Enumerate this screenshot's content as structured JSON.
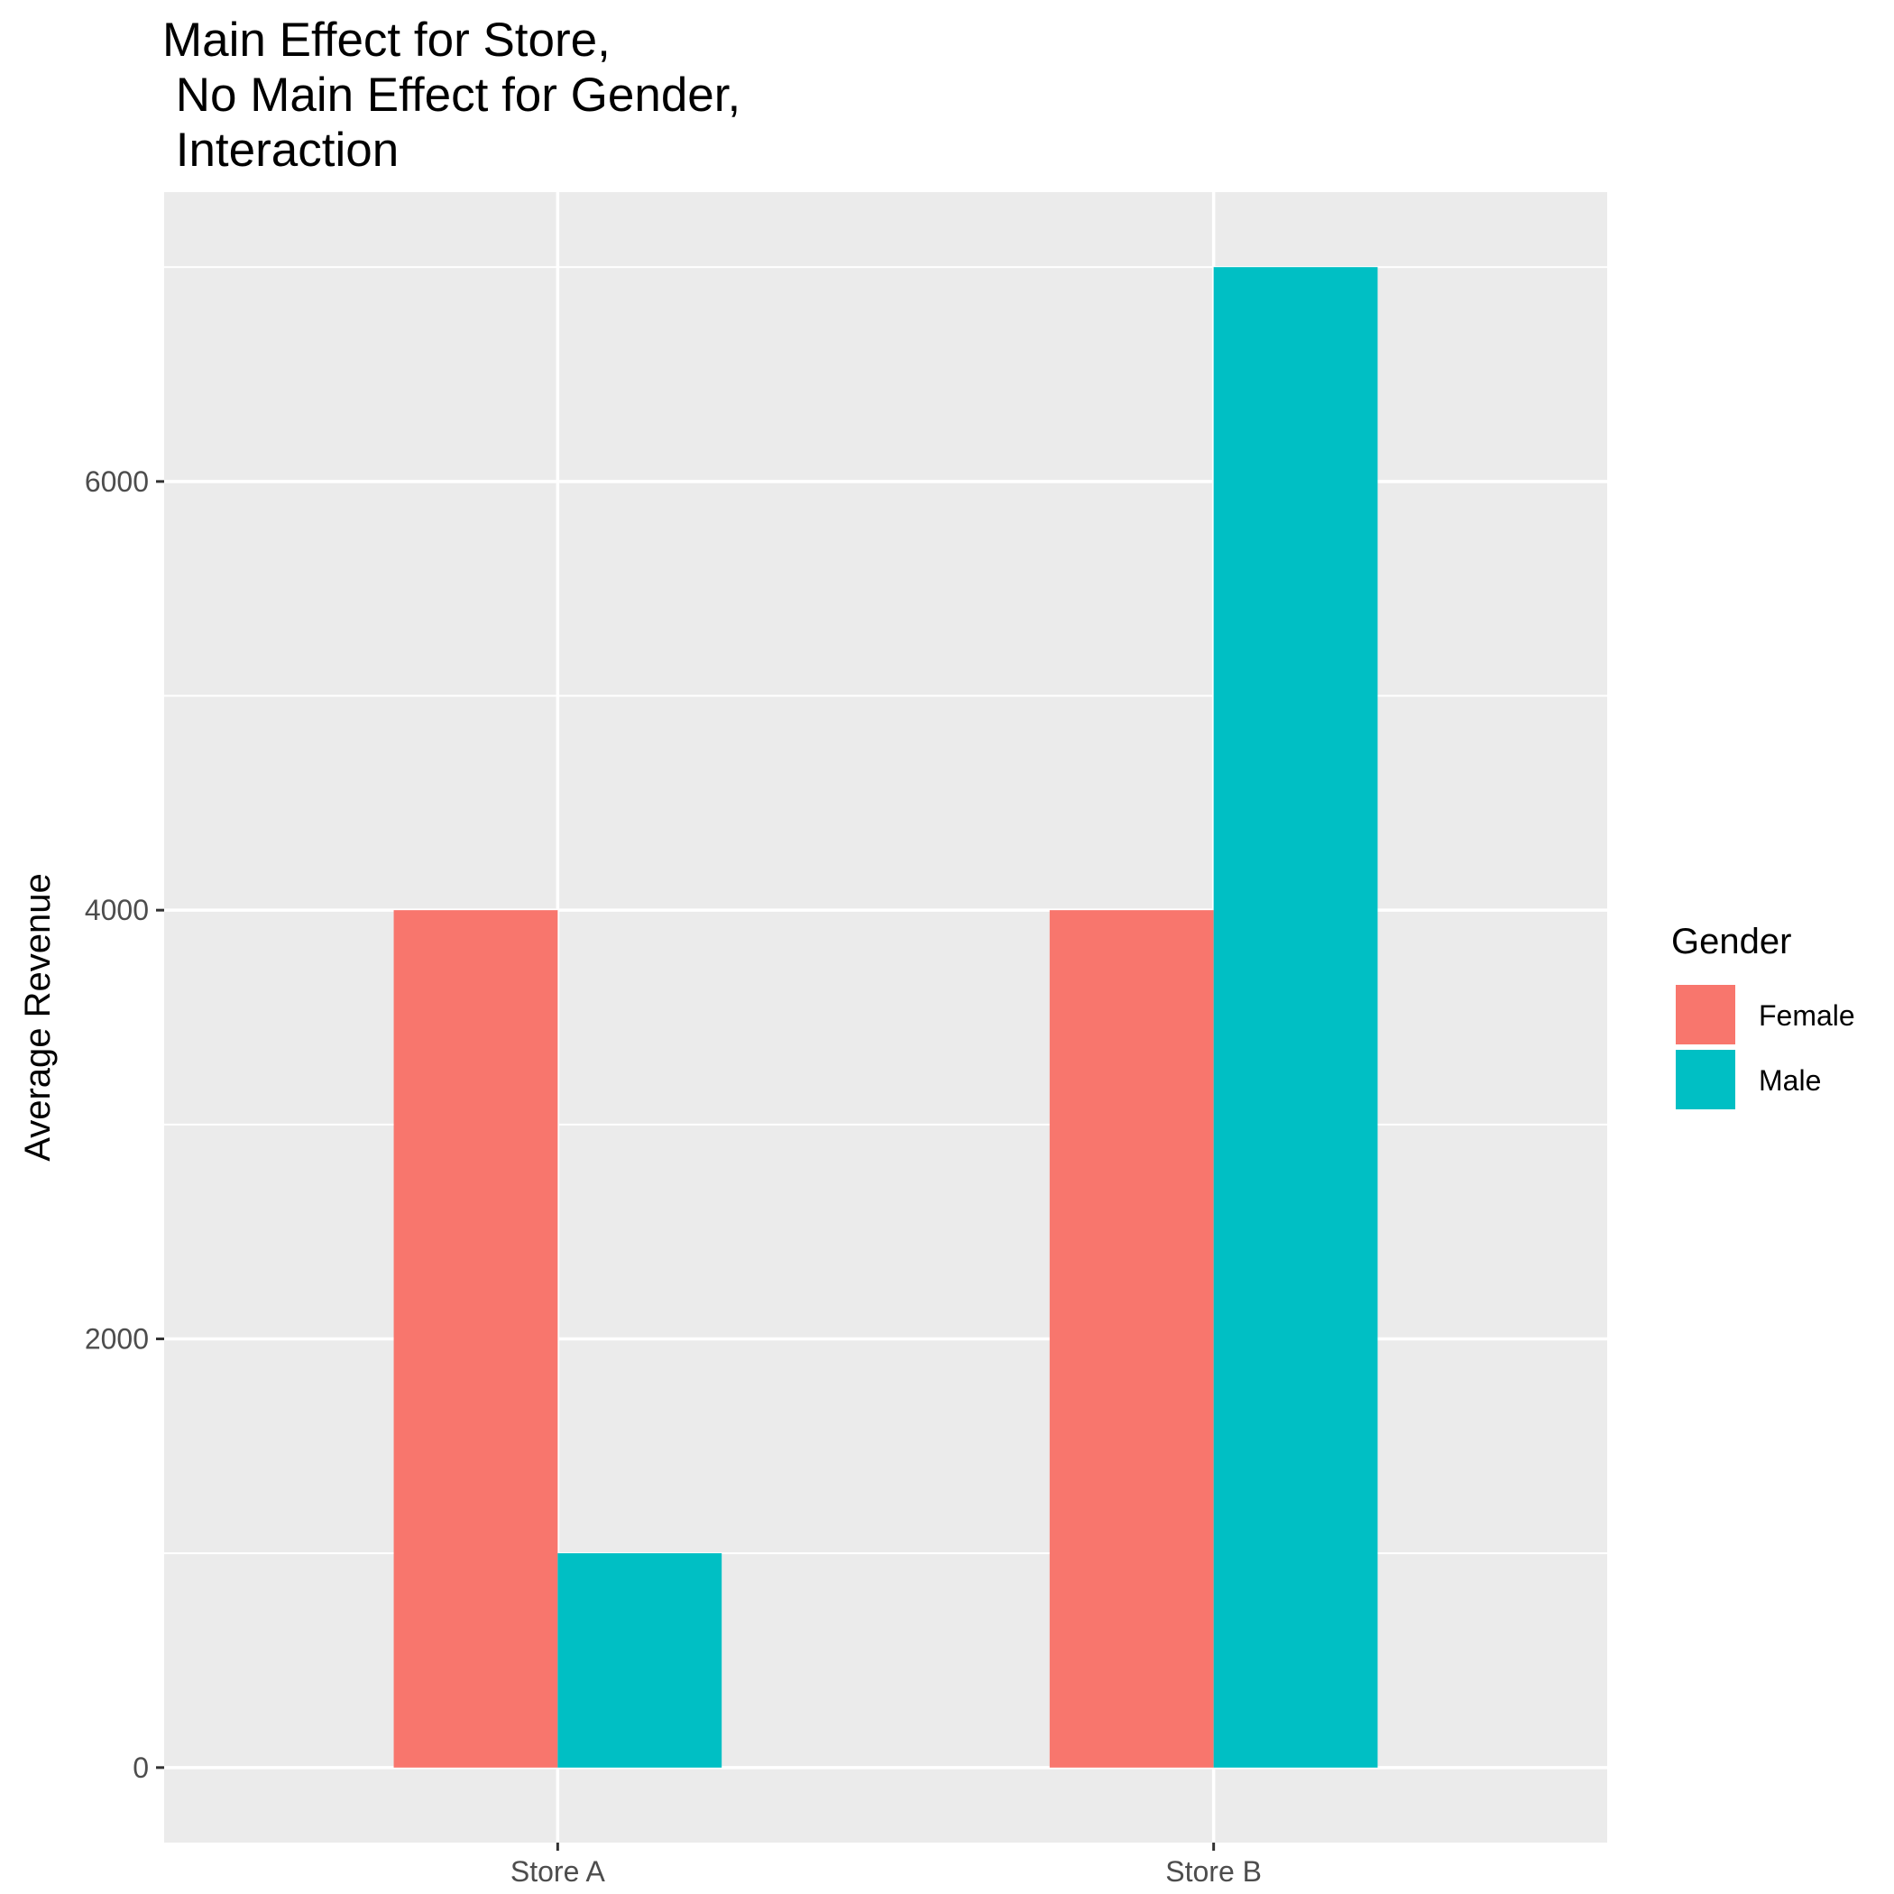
{
  "chart_data": {
    "type": "bar",
    "title_lines": [
      "Main Effect for Store,",
      " No Main Effect for Gender,",
      " Interaction"
    ],
    "xlabel": "",
    "ylabel": "Average Revenue",
    "categories": [
      "Store A",
      "Store B"
    ],
    "series": [
      {
        "name": "Female",
        "color": "#F8766D",
        "values": [
          4000,
          4000
        ]
      },
      {
        "name": "Male",
        "color": "#00BFC4",
        "values": [
          1000,
          7000
        ]
      }
    ],
    "ylim": [
      -350,
      7350
    ],
    "yticks": [
      0,
      2000,
      4000,
      6000
    ],
    "grid": true,
    "legend": {
      "title": "Gender",
      "placement": "right"
    },
    "panel_background": "#EBEBEB"
  }
}
